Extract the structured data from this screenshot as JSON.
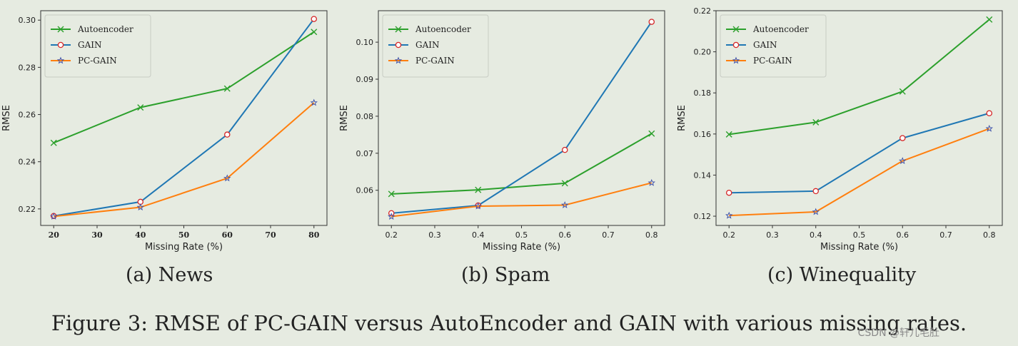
{
  "figure_caption": "Figure 3:   RMSE of PC-GAIN versus AutoEncoder and GAIN with various missing rates.",
  "watermark": "CSDN @轩儿毛肚",
  "colors": {
    "Autoencoder": "#2ca02c",
    "GAIN": "#1f77b4",
    "PC-GAIN": "#ff7f0e",
    "background": "#e6ebe1"
  },
  "chart_data": [
    {
      "type": "line",
      "caption": "(a) News",
      "xlabel": "Missing Rate (%)",
      "ylabel": "RMSE",
      "legend_position": "top-left",
      "xlim": [
        17,
        83
      ],
      "ylim": [
        0.213,
        0.304
      ],
      "xticks": [
        "20",
        "30",
        "40",
        "50",
        "60",
        "70",
        "80"
      ],
      "yticks": [
        "0.22",
        "0.24",
        "0.26",
        "0.28",
        "0.30"
      ],
      "x": [
        20,
        40,
        60,
        80
      ],
      "series": [
        {
          "name": "Autoencoder",
          "marker": "x",
          "values": [
            0.248,
            0.263,
            0.271,
            0.295
          ]
        },
        {
          "name": "GAIN",
          "marker": "o",
          "values": [
            0.217,
            0.223,
            0.2515,
            0.3005
          ]
        },
        {
          "name": "PC-GAIN",
          "marker": "*",
          "values": [
            0.2168,
            0.2207,
            0.233,
            0.265
          ]
        }
      ]
    },
    {
      "type": "line",
      "caption": "(b) Spam",
      "xlabel": "Missing Rate (%)",
      "ylabel": "RMSE",
      "legend_position": "top-left",
      "xlim": [
        0.17,
        0.83
      ],
      "ylim": [
        0.0505,
        0.1085
      ],
      "xticks": [
        "0.2",
        "0.3",
        "0.4",
        "0.5",
        "0.6",
        "0.7",
        "0.8"
      ],
      "yticks": [
        "0.06",
        "0.07",
        "0.08",
        "0.09",
        "0.10"
      ],
      "x": [
        0.2,
        0.4,
        0.6,
        0.8
      ],
      "series": [
        {
          "name": "Autoencoder",
          "marker": "x",
          "values": [
            0.059,
            0.0601,
            0.0619,
            0.0753
          ]
        },
        {
          "name": "GAIN",
          "marker": "o",
          "values": [
            0.0538,
            0.0559,
            0.0709,
            0.1055
          ]
        },
        {
          "name": "PC-GAIN",
          "marker": "*",
          "values": [
            0.0529,
            0.0557,
            0.056,
            0.062
          ]
        }
      ]
    },
    {
      "type": "line",
      "caption": "(c) Winequality",
      "xlabel": "Missing Rate (%)",
      "ylabel": "RMSE",
      "legend_position": "top-left",
      "xlim": [
        0.17,
        0.83
      ],
      "ylim": [
        0.1155,
        0.22
      ],
      "xticks": [
        "0.2",
        "0.3",
        "0.4",
        "0.5",
        "0.6",
        "0.7",
        "0.8"
      ],
      "yticks": [
        "0.12",
        "0.14",
        "0.16",
        "0.18",
        "0.20",
        "0.22"
      ],
      "x": [
        0.2,
        0.4,
        0.6,
        0.8
      ],
      "series": [
        {
          "name": "Autoencoder",
          "marker": "x",
          "values": [
            0.1598,
            0.1657,
            0.1807,
            0.2157
          ]
        },
        {
          "name": "GAIN",
          "marker": "o",
          "values": [
            0.1314,
            0.1322,
            0.158,
            0.1701
          ]
        },
        {
          "name": "PC-GAIN",
          "marker": "*",
          "values": [
            0.1203,
            0.1221,
            0.1469,
            0.1626
          ]
        }
      ]
    }
  ]
}
